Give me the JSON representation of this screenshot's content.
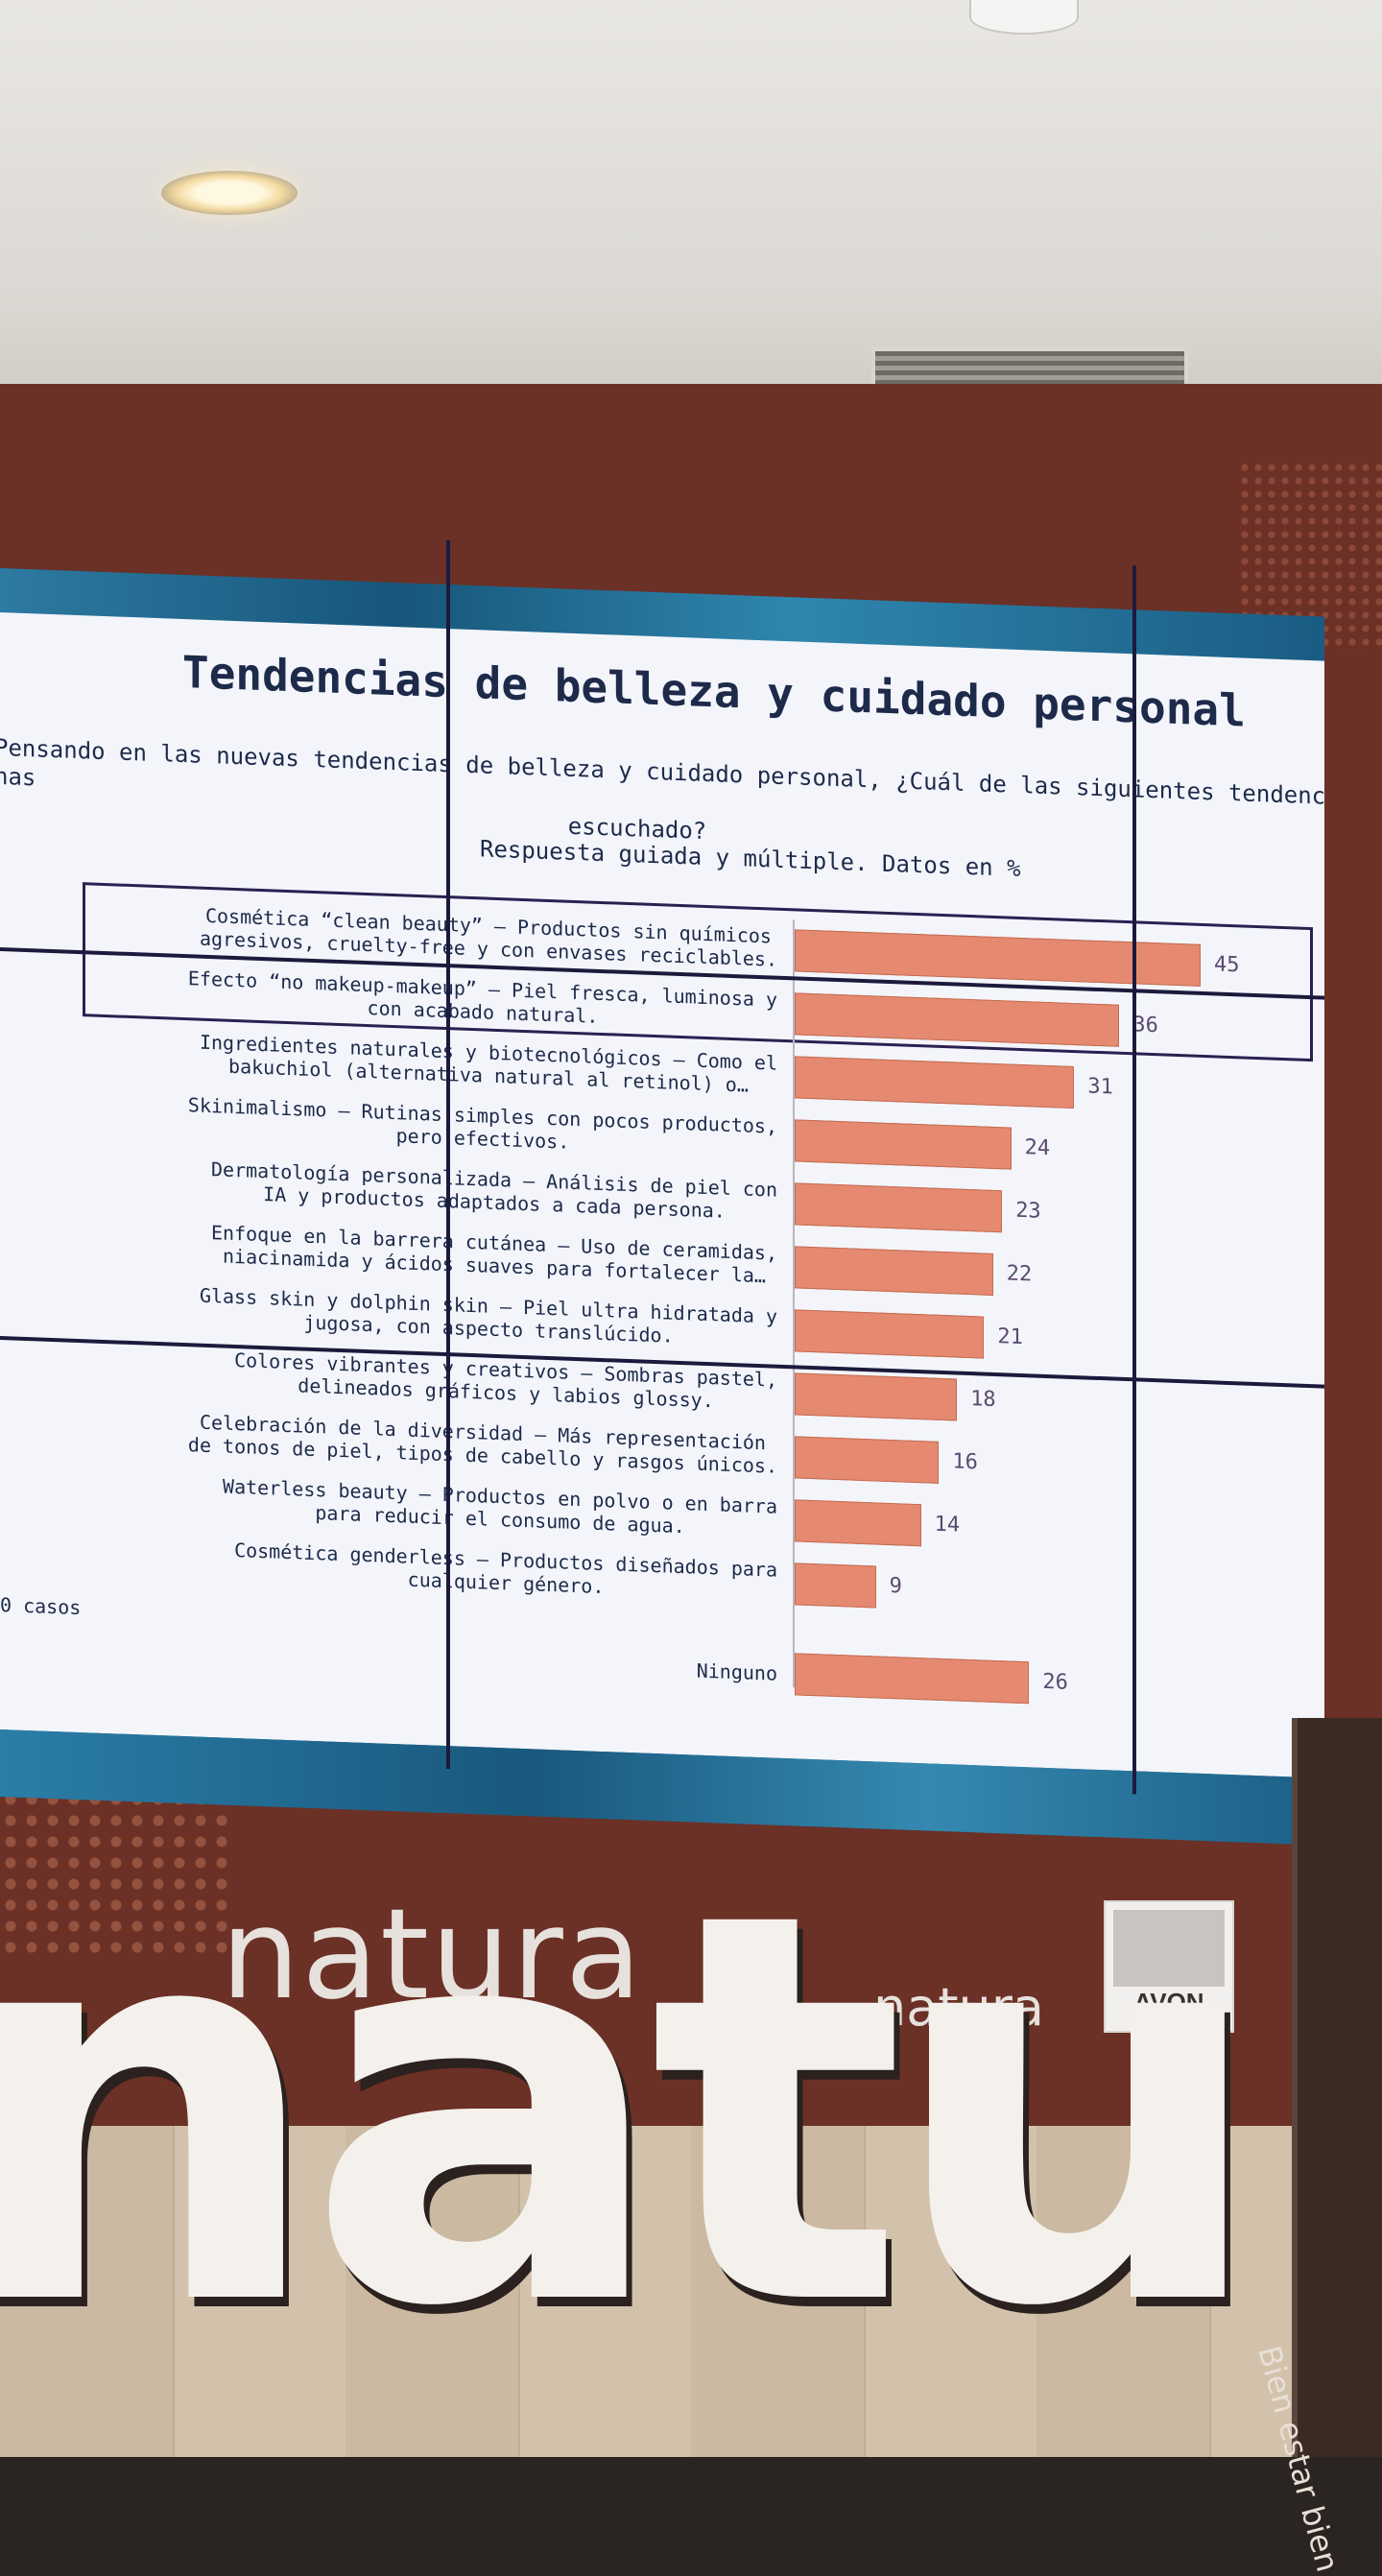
{
  "slide": {
    "title": "Tendencias de belleza y cuidado personal",
    "subtitle_line1": "Pensando en las nuevas tendencias de belleza y cuidado personal, ¿Cuál de las siguientes tendencias has",
    "subtitle_line2": "escuchado?",
    "note": "Respuesta guiada y múltiple. Datos en %",
    "cases_label": "0 casos"
  },
  "chart_data": {
    "type": "bar",
    "orientation": "horizontal",
    "categories": [
      "Cosmética “clean beauty” – Productos sin químicos agresivos, cruelty-free y con envases reciclables.",
      "Efecto “no makeup-makeup” – Piel fresca, luminosa y con acabado natural.",
      "Ingredientes naturales y biotecnológicos – Como el bakuchiol (alternativa natural al retinol) o…",
      "Skinimalismo – Rutinas simples con pocos productos, pero efectivos.",
      "Dermatología personalizada – Análisis de piel con IA y productos adaptados a cada persona.",
      "Enfoque en la barrera cutánea – Uso de ceramidas, niacinamida y ácidos suaves para fortalecer la…",
      "Glass skin y dolphin skin – Piel ultra hidratada y jugosa, con aspecto translúcido.",
      "Colores vibrantes y creativos – Sombras pastel, delineados gráficos y labios glossy.",
      "Celebración de la diversidad – Más representación de tonos de piel, tipos de cabello y rasgos únicos.",
      "Waterless beauty – Productos en polvo o en barra para reducir el consumo de agua.",
      "Cosmética genderless – Productos diseñados para cualquier género.",
      "Ninguno"
    ],
    "label_lines": [
      [
        "Cosmética “clean beauty” – Productos sin químicos",
        "agresivos, cruelty-free y con envases reciclables."
      ],
      [
        "Efecto “no makeup-makeup” – Piel fresca, luminosa y",
        "con acabado natural."
      ],
      [
        "Ingredientes naturales y biotecnológicos – Como el",
        "bakuchiol (alternativa natural al retinol) o…"
      ],
      [
        "Skinimalismo – Rutinas simples con pocos productos,",
        "pero efectivos."
      ],
      [
        "Dermatología personalizada – Análisis de piel con",
        "IA y productos adaptados a cada persona."
      ],
      [
        "Enfoque en la barrera cutánea – Uso de ceramidas,",
        "niacinamida y ácidos suaves para fortalecer la…"
      ],
      [
        "Glass skin y dolphin skin – Piel ultra hidratada y",
        "jugosa, con aspecto translúcido."
      ],
      [
        "Colores vibrantes y creativos – Sombras pastel,",
        "delineados gráficos y labios glossy."
      ],
      [
        "Celebración de la diversidad – Más representación",
        "de tonos de piel, tipos de cabello y rasgos únicos."
      ],
      [
        "Waterless beauty – Productos en polvo o en barra",
        "para reducir el consumo de agua."
      ],
      [
        "Cosmética genderless – Productos diseñados para",
        "cualquier género."
      ],
      [
        "Ninguno"
      ]
    ],
    "values": [
      45,
      36,
      31,
      24,
      23,
      22,
      21,
      18,
      16,
      14,
      9,
      26
    ],
    "xlim": [
      0,
      50
    ],
    "bar_color": "#e58a70",
    "value_color": "#5b4a6e",
    "highlighted": [
      0,
      1
    ]
  },
  "venue": {
    "brand_main": "natura",
    "brand_small": "natura",
    "brand_avon": "AVON",
    "letters": "natu",
    "podium_text": "Bien estar bien"
  },
  "colors": {
    "wall": "#6b3026",
    "slide_bg": "#f3f5fb",
    "text_navy": "#1d2a4a"
  }
}
